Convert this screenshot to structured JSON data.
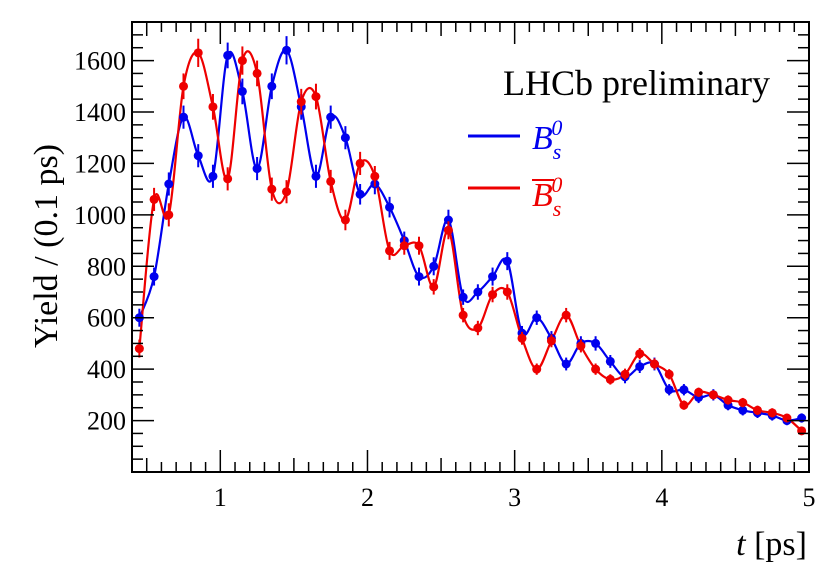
{
  "chart_data": {
    "type": "scatter",
    "title": "LHCb preliminary",
    "xlabel_italic": "t",
    "xlabel_unit": " [ps]",
    "ylabel": "Yield / (0.1 ps)",
    "xlim": [
      0.4,
      5.0
    ],
    "ylim": [
      0,
      1750
    ],
    "xticks": [
      1,
      2,
      3,
      4,
      5
    ],
    "yticks": [
      200,
      400,
      600,
      800,
      1000,
      1200,
      1400,
      1600
    ],
    "grid": false,
    "legend_position": "top-right",
    "series": [
      {
        "name": "B_s^0",
        "legend_main": "B",
        "legend_sub": "s",
        "legend_sup": "0",
        "legend_bar": false,
        "color": "#0000ee",
        "x": [
          0.45,
          0.55,
          0.65,
          0.75,
          0.85,
          0.95,
          1.05,
          1.15,
          1.25,
          1.35,
          1.45,
          1.55,
          1.65,
          1.75,
          1.85,
          1.95,
          2.05,
          2.15,
          2.25,
          2.35,
          2.45,
          2.55,
          2.65,
          2.75,
          2.85,
          2.95,
          3.05,
          3.15,
          3.25,
          3.35,
          3.45,
          3.55,
          3.65,
          3.75,
          3.85,
          3.95,
          4.05,
          4.15,
          4.25,
          4.35,
          4.45,
          4.55,
          4.65,
          4.75,
          4.85,
          4.95
        ],
        "y": [
          600,
          760,
          1120,
          1380,
          1230,
          1150,
          1620,
          1480,
          1180,
          1500,
          1640,
          1420,
          1150,
          1380,
          1300,
          1080,
          1120,
          1030,
          900,
          760,
          800,
          980,
          680,
          700,
          760,
          820,
          540,
          600,
          520,
          420,
          500,
          500,
          430,
          370,
          410,
          420,
          320,
          320,
          290,
          300,
          260,
          240,
          230,
          220,
          200,
          210
        ],
        "err": [
          35,
          35,
          45,
          45,
          45,
          45,
          50,
          50,
          45,
          50,
          55,
          50,
          45,
          45,
          45,
          40,
          40,
          40,
          35,
          35,
          35,
          40,
          30,
          30,
          35,
          35,
          28,
          28,
          28,
          25,
          28,
          28,
          25,
          25,
          25,
          25,
          22,
          22,
          22,
          22,
          20,
          20,
          20,
          20,
          18,
          18
        ]
      },
      {
        "name": "B_s^0-bar",
        "legend_main": "B",
        "legend_sub": "s",
        "legend_sup": "0",
        "legend_bar": true,
        "color": "#ee0000",
        "x": [
          0.45,
          0.55,
          0.65,
          0.75,
          0.85,
          0.95,
          1.05,
          1.15,
          1.25,
          1.35,
          1.45,
          1.55,
          1.65,
          1.75,
          1.85,
          1.95,
          2.05,
          2.15,
          2.25,
          2.35,
          2.45,
          2.55,
          2.65,
          2.75,
          2.85,
          2.95,
          3.05,
          3.15,
          3.25,
          3.35,
          3.45,
          3.55,
          3.65,
          3.75,
          3.85,
          3.95,
          4.05,
          4.15,
          4.25,
          4.35,
          4.45,
          4.55,
          4.65,
          4.75,
          4.85,
          4.95
        ],
        "y": [
          480,
          1060,
          1000,
          1500,
          1630,
          1420,
          1140,
          1600,
          1550,
          1100,
          1090,
          1440,
          1460,
          1130,
          980,
          1200,
          1150,
          860,
          880,
          880,
          720,
          940,
          610,
          560,
          690,
          700,
          520,
          400,
          510,
          610,
          490,
          400,
          360,
          380,
          460,
          420,
          380,
          260,
          310,
          300,
          280,
          270,
          240,
          230,
          210,
          160
        ],
        "err": [
          35,
          45,
          45,
          50,
          55,
          50,
          45,
          55,
          50,
          45,
          45,
          50,
          50,
          45,
          40,
          45,
          40,
          35,
          35,
          35,
          30,
          35,
          28,
          28,
          30,
          30,
          25,
          22,
          25,
          28,
          25,
          22,
          20,
          22,
          22,
          22,
          20,
          18,
          18,
          18,
          18,
          18,
          18,
          18,
          16,
          16
        ]
      }
    ]
  }
}
